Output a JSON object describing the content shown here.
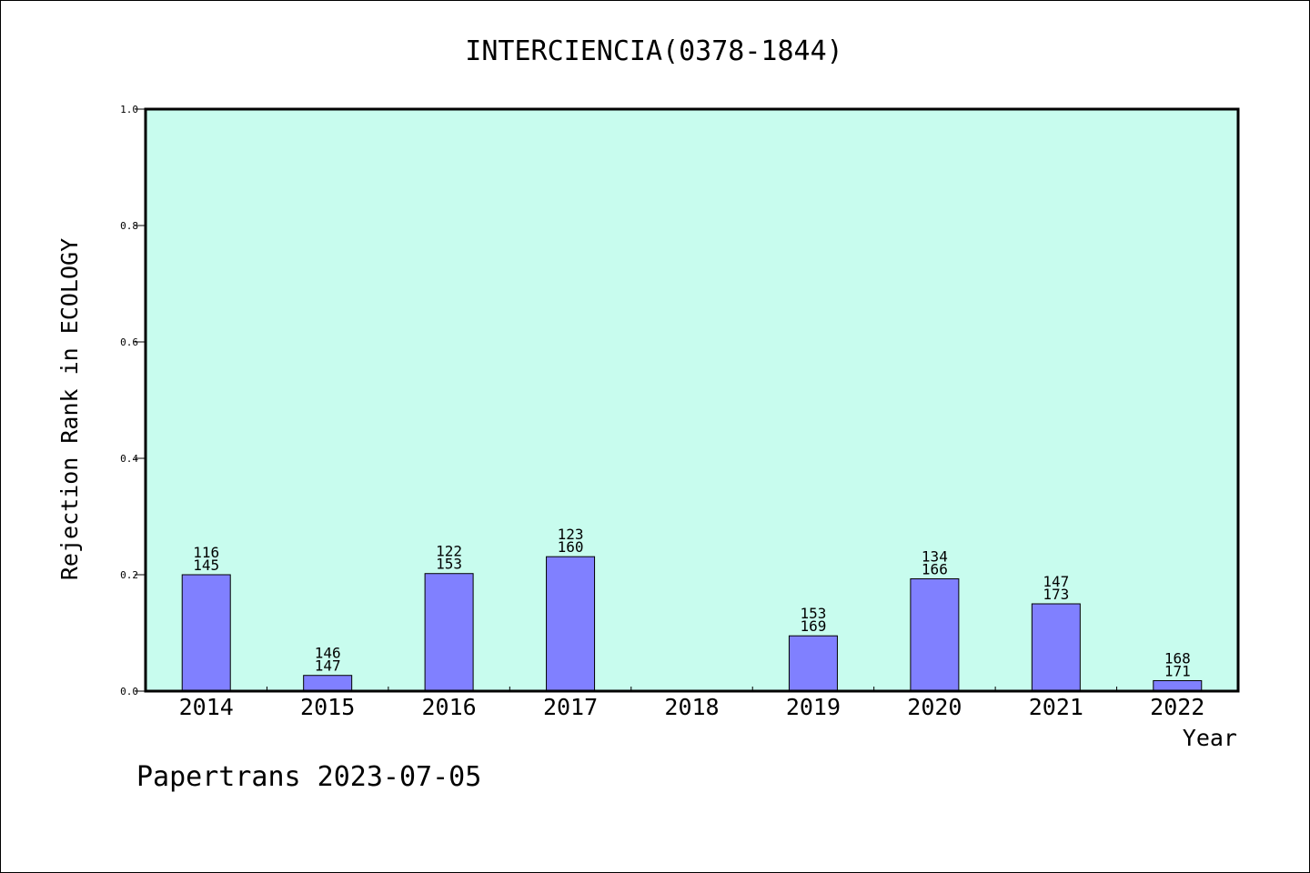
{
  "chart_data": {
    "type": "bar",
    "title": "INTERCIENCIA(0378-1844)",
    "xlabel": "Year",
    "ylabel": "Rejection Rank in ECOLOGY",
    "categories": [
      "2014",
      "2015",
      "2016",
      "2017",
      "2018",
      "2019",
      "2020",
      "2021",
      "2022"
    ],
    "values": [
      0.2,
      0.027,
      0.202,
      0.231,
      null,
      0.095,
      0.193,
      0.15,
      0.018
    ],
    "labels_top": [
      "116",
      "146",
      "122",
      "123",
      "",
      "153",
      "134",
      "147",
      "168"
    ],
    "labels_bottom": [
      "145",
      "147",
      "153",
      "160",
      "",
      "169",
      "166",
      "173",
      "171"
    ],
    "ylim": [
      0.0,
      1.0
    ],
    "yticks": [
      "0.0",
      "0.2",
      "0.4",
      "0.6",
      "0.8",
      "1.0"
    ],
    "grid": false,
    "colors": {
      "plot_background": "#c8fcee",
      "bar_fill": "#8080ff",
      "bar_stroke": "#000000"
    }
  },
  "footer": "Papertrans 2023-07-05"
}
